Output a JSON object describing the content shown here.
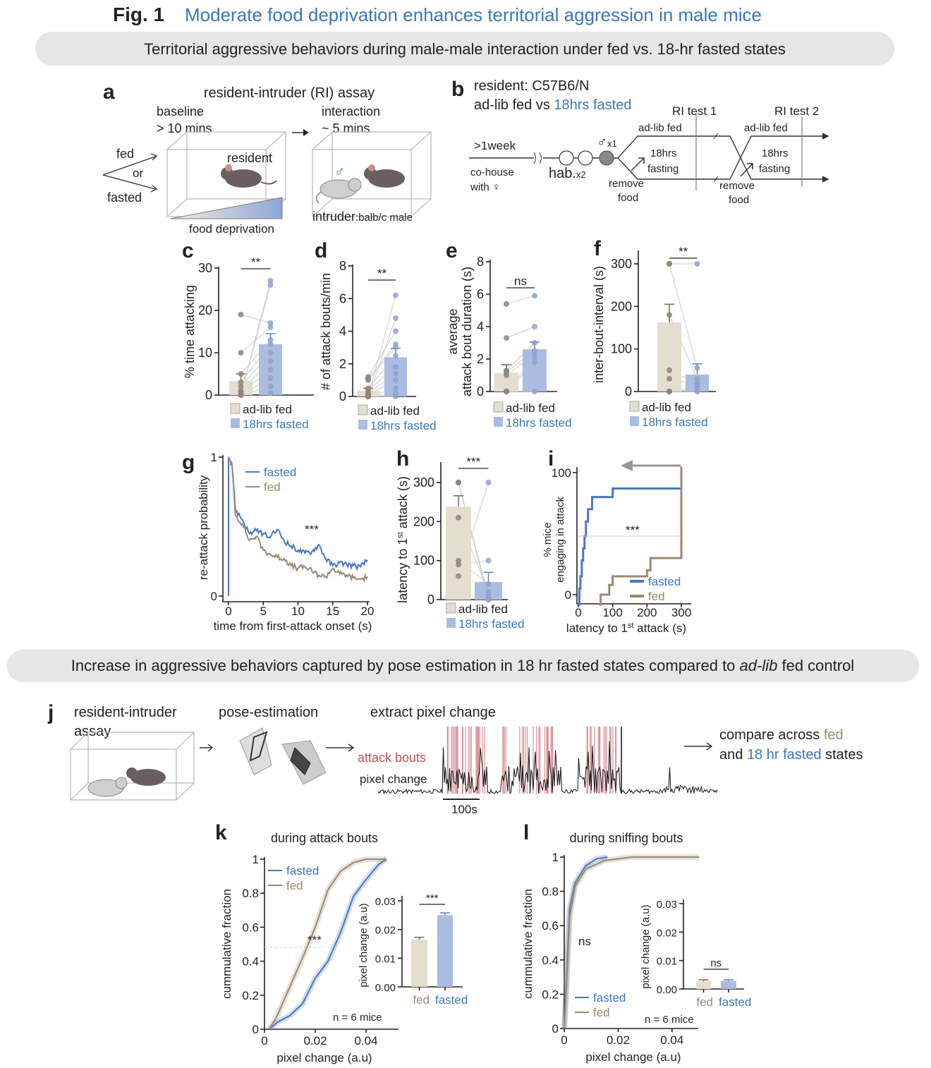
{
  "figure": {
    "label": "Fig. 1",
    "title": "Moderate food deprivation enhances territorial aggression in male mice",
    "section1": "Territorial aggressive behaviors during male-male interaction under fed vs. 18-hr fasted states",
    "section2_pre": "Increase in aggressive behaviors captured by pose estimation in 18 hr fasted states compared to ",
    "section2_em": "ad-lib",
    "section2_post": " fed control"
  },
  "colors": {
    "title_blue": "#3a78b8",
    "fed_fill": "#e3dece",
    "fed_line": "#9a8a6e",
    "fasted_fill": "#aabde0",
    "fasted_line": "#4a78c0",
    "attack_bouts": "#c0505c",
    "banner": "#e6e6e6"
  },
  "panel_a": {
    "label": "a",
    "title": "resident-intruder (RI) assay",
    "baseline": "baseline",
    "baseline_time": "> 10 mins",
    "interaction": "interaction",
    "interaction_time": "~ 5 mins",
    "fed": "fed",
    "or": "or",
    "fasted": "fasted",
    "resident": "resident",
    "gradient_label": "food deprivation",
    "intruder": "intruder",
    "intruder_strain": ":balb/c male",
    "male_symbol": "♂"
  },
  "panel_b": {
    "label": "b",
    "line1": "resident: C57B6/N",
    "line2_pre": "ad-lib fed vs ",
    "line2_blue": "18hrs fasted",
    "ri_test1": "RI test 1",
    "ri_test2": "RI test 2",
    "adlib_fed": "ad-lib fed",
    "fasting_1": "18hrs",
    "fasting_2": "fasting",
    "week": ">1week",
    "cohouse": "co-house",
    "with_female": "with ♀",
    "hab": "hab.",
    "hab_count": "x2",
    "male": "♂",
    "male_count": "x1",
    "remove": "remove",
    "food": "food"
  },
  "panel_j": {
    "label": "j",
    "step1_a": "resident-intruder",
    "step1_b": "assay",
    "step2": "pose-estimation",
    "step3": "extract pixel change",
    "attack_bouts": "attack bouts",
    "pixel_change": "pixel change",
    "scale_bar": "100s",
    "compare_pre": "compare across ",
    "compare_fed": "fed",
    "compare_and": "and ",
    "compare_fasted": "18 hr fasted",
    "compare_post": " states"
  },
  "chart_data": [
    {
      "panel": "c",
      "type": "bar",
      "ylabel": "% time attacking",
      "ylim": [
        0,
        30
      ],
      "yticks": [
        0,
        10,
        20,
        30
      ],
      "categories": [
        "ad-lib fed",
        "18hrs fasted"
      ],
      "values": [
        3.3,
        12
      ],
      "sem": [
        1.7,
        2.5
      ],
      "significance": "**",
      "points": [
        [
          0,
          0,
          0,
          0.5,
          1,
          2,
          3,
          5,
          10,
          19,
          0,
          0
        ],
        [
          0.5,
          2,
          4,
          6,
          8,
          10,
          12,
          13,
          16,
          17,
          26,
          27
        ]
      ]
    },
    {
      "panel": "d",
      "type": "bar",
      "ylabel": "# of attack bouts/min",
      "ylim": [
        0,
        8
      ],
      "yticks": [
        0,
        2,
        4,
        6,
        8
      ],
      "categories": [
        "ad-lib fed",
        "18hrs fasted"
      ],
      "values": [
        0.35,
        2.4
      ],
      "sem": [
        0.15,
        0.55
      ],
      "significance": "**",
      "points": [
        [
          0,
          0,
          0,
          0.1,
          0.2,
          0.4,
          0.5,
          1,
          1.1,
          1.2,
          0,
          0
        ],
        [
          0,
          0.2,
          0.5,
          1,
          1.4,
          1.8,
          2.5,
          3,
          3.2,
          4,
          4.8,
          6.2
        ]
      ]
    },
    {
      "panel": "e",
      "type": "bar",
      "ylabel": "average attack bout duration (s)",
      "ylabel_lines": [
        "average",
        "attack bout duration (s)"
      ],
      "ylim": [
        0,
        8
      ],
      "yticks": [
        0,
        2,
        4,
        6,
        8
      ],
      "categories": [
        "ad-lib fed",
        "18hrs fasted"
      ],
      "values": [
        1.15,
        2.6
      ],
      "sem": [
        0.5,
        0.45
      ],
      "significance": "ns",
      "points": [
        [
          0,
          0,
          0,
          1,
          1.2,
          1.3,
          3.3,
          5.4
        ],
        [
          0,
          1.8,
          2.1,
          2.3,
          2.5,
          3,
          4,
          5.9
        ]
      ]
    },
    {
      "panel": "f",
      "type": "bar",
      "ylabel": "inter-bout-interval (s)",
      "ylim": [
        0,
        300
      ],
      "yticks": [
        0,
        100,
        200,
        300
      ],
      "categories": [
        "ad-lib fed",
        "18hrs fasted"
      ],
      "values": [
        162,
        40
      ],
      "sem": [
        43,
        25
      ],
      "significance": "**",
      "points": [
        [
          0,
          0,
          0,
          30,
          50,
          180,
          300,
          300
        ],
        [
          0,
          5,
          10,
          15,
          20,
          30,
          55,
          300
        ]
      ]
    },
    {
      "panel": "g",
      "type": "line",
      "xlabel": "time from first-attack onset (s)",
      "ylabel": "re-attack probability",
      "xlim": [
        0,
        20
      ],
      "ylim": [
        0,
        1
      ],
      "xticks": [
        0,
        5,
        10,
        15,
        20
      ],
      "yticks": [
        0,
        1
      ],
      "annotation": "***",
      "legend": "top-right",
      "series": [
        {
          "name": "fasted",
          "x": [
            0,
            0,
            0.5,
            1,
            2,
            3,
            4,
            5,
            6,
            7,
            8,
            9,
            10,
            11,
            12,
            13,
            14,
            15,
            16,
            17,
            18,
            19,
            20
          ],
          "y": [
            0,
            1,
            0.95,
            0.62,
            0.55,
            0.45,
            0.47,
            0.45,
            0.42,
            0.48,
            0.4,
            0.36,
            0.33,
            0.31,
            0.32,
            0.37,
            0.27,
            0.22,
            0.24,
            0.23,
            0.22,
            0.21,
            0.26
          ]
        },
        {
          "name": "fed",
          "x": [
            0,
            0.5,
            1,
            2,
            3,
            4,
            5,
            6,
            7,
            8,
            9,
            10,
            11,
            12,
            13,
            14,
            15,
            16,
            17,
            18,
            19,
            20
          ],
          "y": [
            1,
            0.95,
            0.58,
            0.52,
            0.4,
            0.43,
            0.33,
            0.3,
            0.28,
            0.27,
            0.22,
            0.2,
            0.21,
            0.18,
            0.15,
            0.14,
            0.2,
            0.16,
            0.15,
            0.13,
            0.12,
            0.14
          ]
        }
      ]
    },
    {
      "panel": "h",
      "type": "bar",
      "ylabel": "latency to 1st attack (s)",
      "ylabel_main": "latency to 1",
      "ylabel_sup": "st",
      "ylabel_end": " attack (s)",
      "ylim": [
        0,
        300
      ],
      "yticks": [
        0,
        100,
        200,
        300
      ],
      "categories": [
        "ad-lib fed",
        "18hrs fasted"
      ],
      "values": [
        238,
        45
      ],
      "sem": [
        28,
        25
      ],
      "significance": "***",
      "points": [
        [
          300,
          300,
          300,
          300,
          210,
          100,
          90,
          60
        ],
        [
          0,
          0,
          5,
          10,
          20,
          40,
          100,
          300
        ]
      ]
    },
    {
      "panel": "i",
      "type": "line",
      "xlabel_main": "latency to 1",
      "xlabel_sup": "st",
      "xlabel_end": " attack (s)",
      "ylabel_lines": [
        "% mice",
        "engaging in attack"
      ],
      "xlim": [
        0,
        300
      ],
      "ylim": [
        0,
        100
      ],
      "xticks": [
        0,
        100,
        200,
        300
      ],
      "yticks": [
        0,
        100
      ],
      "annotation": "***",
      "legend": "bottom-right",
      "series": [
        {
          "name": "fasted",
          "x": [
            0,
            3,
            6,
            10,
            14,
            18,
            22,
            28,
            40,
            100,
            300
          ],
          "y": [
            -8,
            5,
            15,
            28,
            38,
            48,
            60,
            70,
            80,
            87,
            87
          ]
        },
        {
          "name": "fed",
          "x": [
            60,
            65,
            90,
            100,
            200,
            210,
            300,
            300
          ],
          "y": [
            -8,
            0,
            8,
            15,
            20,
            30,
            30,
            105
          ]
        }
      ]
    },
    {
      "panel": "k",
      "type": "line",
      "title": "during attack bouts",
      "xlabel": "pixel change (a.u)",
      "ylabel": "cummulative fraction",
      "xlim": [
        0,
        0.05
      ],
      "ylim": [
        0,
        1
      ],
      "xticks": [
        0,
        0.02,
        0.04
      ],
      "yticks": [
        0,
        0.2,
        0.4,
        0.6,
        0.8,
        1
      ],
      "annotation": "***",
      "note": "n = 6 mice",
      "legend": "top-left",
      "series": [
        {
          "name": "fasted",
          "x": [
            0.002,
            0.005,
            0.01,
            0.015,
            0.02,
            0.025,
            0.03,
            0.035,
            0.04,
            0.045,
            0.048
          ],
          "y": [
            0,
            0.04,
            0.08,
            0.15,
            0.3,
            0.4,
            0.57,
            0.78,
            0.88,
            0.97,
            1
          ]
        },
        {
          "name": "fed",
          "x": [
            0.002,
            0.005,
            0.01,
            0.015,
            0.02,
            0.025,
            0.03,
            0.035,
            0.04,
            0.048
          ],
          "y": [
            0,
            0.08,
            0.25,
            0.42,
            0.6,
            0.82,
            0.93,
            0.98,
            1,
            1
          ]
        }
      ]
    },
    {
      "panel": "k-inset",
      "type": "bar",
      "ylabel": "pixel change (a.u)",
      "ylim": [
        0,
        0.03
      ],
      "yticks": [
        "0.00",
        "0.01",
        "0.02",
        "0.03"
      ],
      "categories": [
        "fed",
        "fasted"
      ],
      "values": [
        0.0165,
        0.025
      ],
      "sem": [
        0.0008,
        0.0008
      ],
      "significance": "***"
    },
    {
      "panel": "l",
      "type": "line",
      "title": "during sniffing bouts",
      "xlabel": "pixel change (a.u)",
      "ylabel": "cummulative fraction",
      "xlim": [
        0,
        0.05
      ],
      "ylim": [
        0,
        1
      ],
      "xticks": [
        0,
        0.02,
        0.04
      ],
      "yticks": [
        0,
        0.2,
        0.4,
        0.6,
        0.8,
        1
      ],
      "annotation": "ns",
      "note": "n = 6 mice",
      "legend": "bottom-left",
      "series": [
        {
          "name": "fasted",
          "x": [
            0,
            0.001,
            0.002,
            0.004,
            0.008,
            0.012,
            0.016
          ],
          "y": [
            0,
            0.35,
            0.7,
            0.85,
            0.95,
            0.99,
            1
          ]
        },
        {
          "name": "fed",
          "x": [
            0,
            0.001,
            0.002,
            0.004,
            0.008,
            0.015,
            0.025,
            0.05
          ],
          "y": [
            0,
            0.3,
            0.65,
            0.83,
            0.93,
            0.98,
            1,
            1
          ]
        }
      ]
    },
    {
      "panel": "l-inset",
      "type": "bar",
      "ylabel": "pixel change (a.u)",
      "ylim": [
        0,
        0.03
      ],
      "yticks": [
        "0.00",
        "0.01",
        "0.02",
        "0.03"
      ],
      "categories": [
        "fed",
        "fasted"
      ],
      "values": [
        0.0027,
        0.0028
      ],
      "sem": [
        0.0005,
        0.0004
      ],
      "significance": "ns"
    }
  ]
}
